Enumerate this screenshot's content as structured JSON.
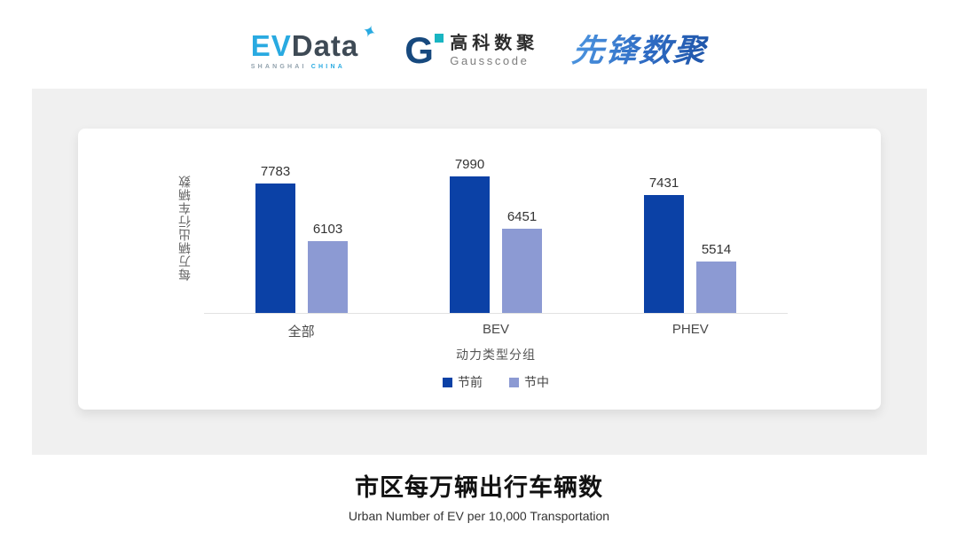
{
  "header": {
    "evdata_logo": {
      "ev": "EV",
      "data": "Data",
      "sparkle": "✦",
      "sub_left": "SHANGHAI",
      "sub_right": "CHINA"
    },
    "gausscode_logo": {
      "g": "G",
      "cn": "高科数聚",
      "en": "Gausscode"
    },
    "xianfeng_logo": {
      "text": "先锋数聚"
    }
  },
  "chart_data": {
    "type": "bar",
    "categories": [
      "全部",
      "BEV",
      "PHEV"
    ],
    "series": [
      {
        "name": "节前",
        "color": "#0B41A6",
        "values": [
          7783,
          7990,
          7431
        ]
      },
      {
        "name": "节中",
        "color": "#8C9AD3",
        "values": [
          6103,
          6451,
          5514
        ]
      }
    ],
    "ylabel": "每万辆出行车辆数",
    "xlabel": "动力类型分组",
    "ylim": [
      4000,
      8400
    ],
    "grid": false,
    "legend_position": "bottom",
    "value_labels": true
  },
  "footer": {
    "title": "市区每万辆出行车辆数",
    "subtitle": "Urban Number of EV per 10,000 Transportation"
  },
  "colors": {
    "series_pre": "#0B41A6",
    "series_mid": "#8C9AD3",
    "panel_bg": "#f0f0f0",
    "card_bg": "#ffffff",
    "evdata_cyan": "#29AAE1",
    "evdata_dark": "#3E4A55",
    "gauss_navy": "#17497E",
    "gauss_teal": "#19B5C2",
    "xianfeng_blue": "#2F6CC4"
  }
}
